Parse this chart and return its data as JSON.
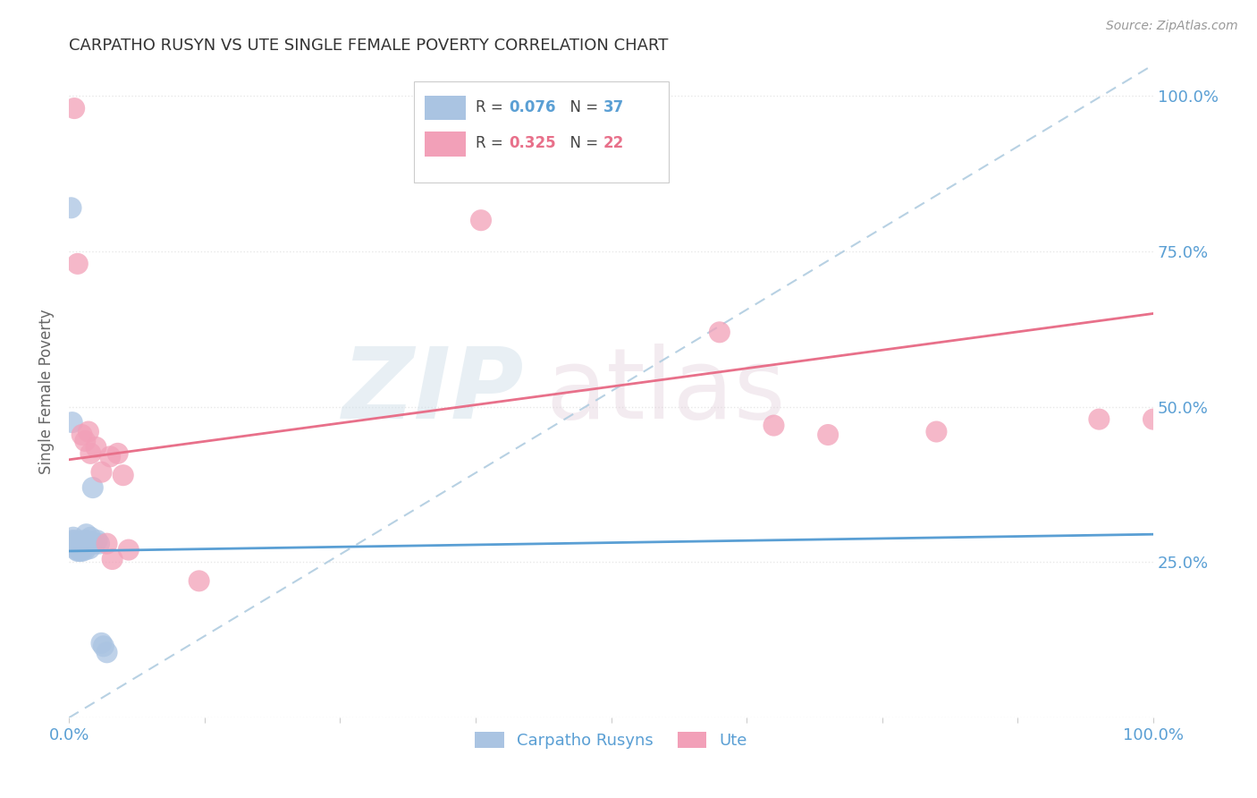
{
  "title": "CARPATHO RUSYN VS UTE SINGLE FEMALE POVERTY CORRELATION CHART",
  "source": "Source: ZipAtlas.com",
  "ylabel": "Single Female Poverty",
  "legend_blue": "Carpatho Rusyns",
  "legend_pink": "Ute",
  "blue_color": "#aac4e2",
  "pink_color": "#f2a0b8",
  "blue_line_color": "#5a9fd4",
  "pink_line_color": "#e8708a",
  "dashed_line_color": "#b0cce0",
  "ytick_color": "#5a9fd4",
  "xtick_color": "#5a9fd4",
  "background_color": "#ffffff",
  "grid_color": "#e8e8e8",
  "blue_R": "0.076",
  "blue_N": "37",
  "pink_R": "0.325",
  "pink_N": "22",
  "blue_x": [
    0.003,
    0.004,
    0.005,
    0.006,
    0.006,
    0.007,
    0.007,
    0.008,
    0.008,
    0.009,
    0.009,
    0.01,
    0.01,
    0.011,
    0.011,
    0.012,
    0.012,
    0.013,
    0.013,
    0.014,
    0.015,
    0.015,
    0.016,
    0.017,
    0.018,
    0.019,
    0.02,
    0.021,
    0.022,
    0.024,
    0.026,
    0.028,
    0.03,
    0.032,
    0.035,
    0.002,
    0.003
  ],
  "blue_y": [
    0.285,
    0.29,
    0.28,
    0.275,
    0.285,
    0.27,
    0.28,
    0.275,
    0.268,
    0.272,
    0.278,
    0.268,
    0.282,
    0.275,
    0.27,
    0.268,
    0.278,
    0.28,
    0.272,
    0.285,
    0.27,
    0.278,
    0.295,
    0.285,
    0.278,
    0.272,
    0.29,
    0.28,
    0.37,
    0.28,
    0.285,
    0.28,
    0.12,
    0.115,
    0.105,
    0.82,
    0.475
  ],
  "pink_x": [
    0.005,
    0.008,
    0.012,
    0.015,
    0.018,
    0.02,
    0.025,
    0.03,
    0.035,
    0.038,
    0.04,
    0.045,
    0.05,
    0.055,
    0.12,
    0.38,
    0.6,
    0.65,
    0.7,
    0.8,
    0.95,
    1.0
  ],
  "pink_y": [
    0.98,
    0.73,
    0.455,
    0.445,
    0.46,
    0.425,
    0.435,
    0.395,
    0.28,
    0.42,
    0.255,
    0.425,
    0.39,
    0.27,
    0.22,
    0.8,
    0.62,
    0.47,
    0.455,
    0.46,
    0.48,
    0.48
  ],
  "blue_line": [
    0.0,
    1.0,
    0.268,
    0.295
  ],
  "pink_line": [
    0.0,
    1.0,
    0.415,
    0.65
  ],
  "dash_line": [
    0.0,
    1.0,
    0.0,
    1.05
  ],
  "xlim": [
    0.0,
    1.0
  ],
  "ylim": [
    0.0,
    1.05
  ]
}
